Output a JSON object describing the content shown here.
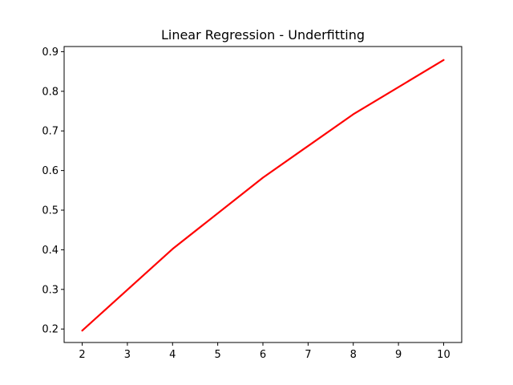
{
  "chart_data": {
    "type": "line",
    "title": "Linear Regression - Underfitting",
    "xlabel": "",
    "ylabel": "",
    "x": [
      2,
      4,
      6,
      8,
      10
    ],
    "series": [
      {
        "values": [
          0.196,
          0.402,
          0.582,
          0.742,
          0.879
        ],
        "color": "#ff0000"
      }
    ],
    "xlim": [
      1.6,
      10.4
    ],
    "ylim": [
      0.166,
      0.913
    ],
    "xticks": [
      2,
      3,
      4,
      5,
      6,
      7,
      8,
      9,
      10
    ],
    "yticks": [
      0.2,
      0.3,
      0.4,
      0.5,
      0.6,
      0.7,
      0.8,
      0.9
    ],
    "xtick_labels": [
      "2",
      "3",
      "4",
      "5",
      "6",
      "7",
      "8",
      "9",
      "10"
    ],
    "ytick_labels": [
      "0.2",
      "0.3",
      "0.4",
      "0.5",
      "0.6",
      "0.7",
      "0.8",
      "0.9"
    ],
    "grid": false,
    "legend": false
  }
}
